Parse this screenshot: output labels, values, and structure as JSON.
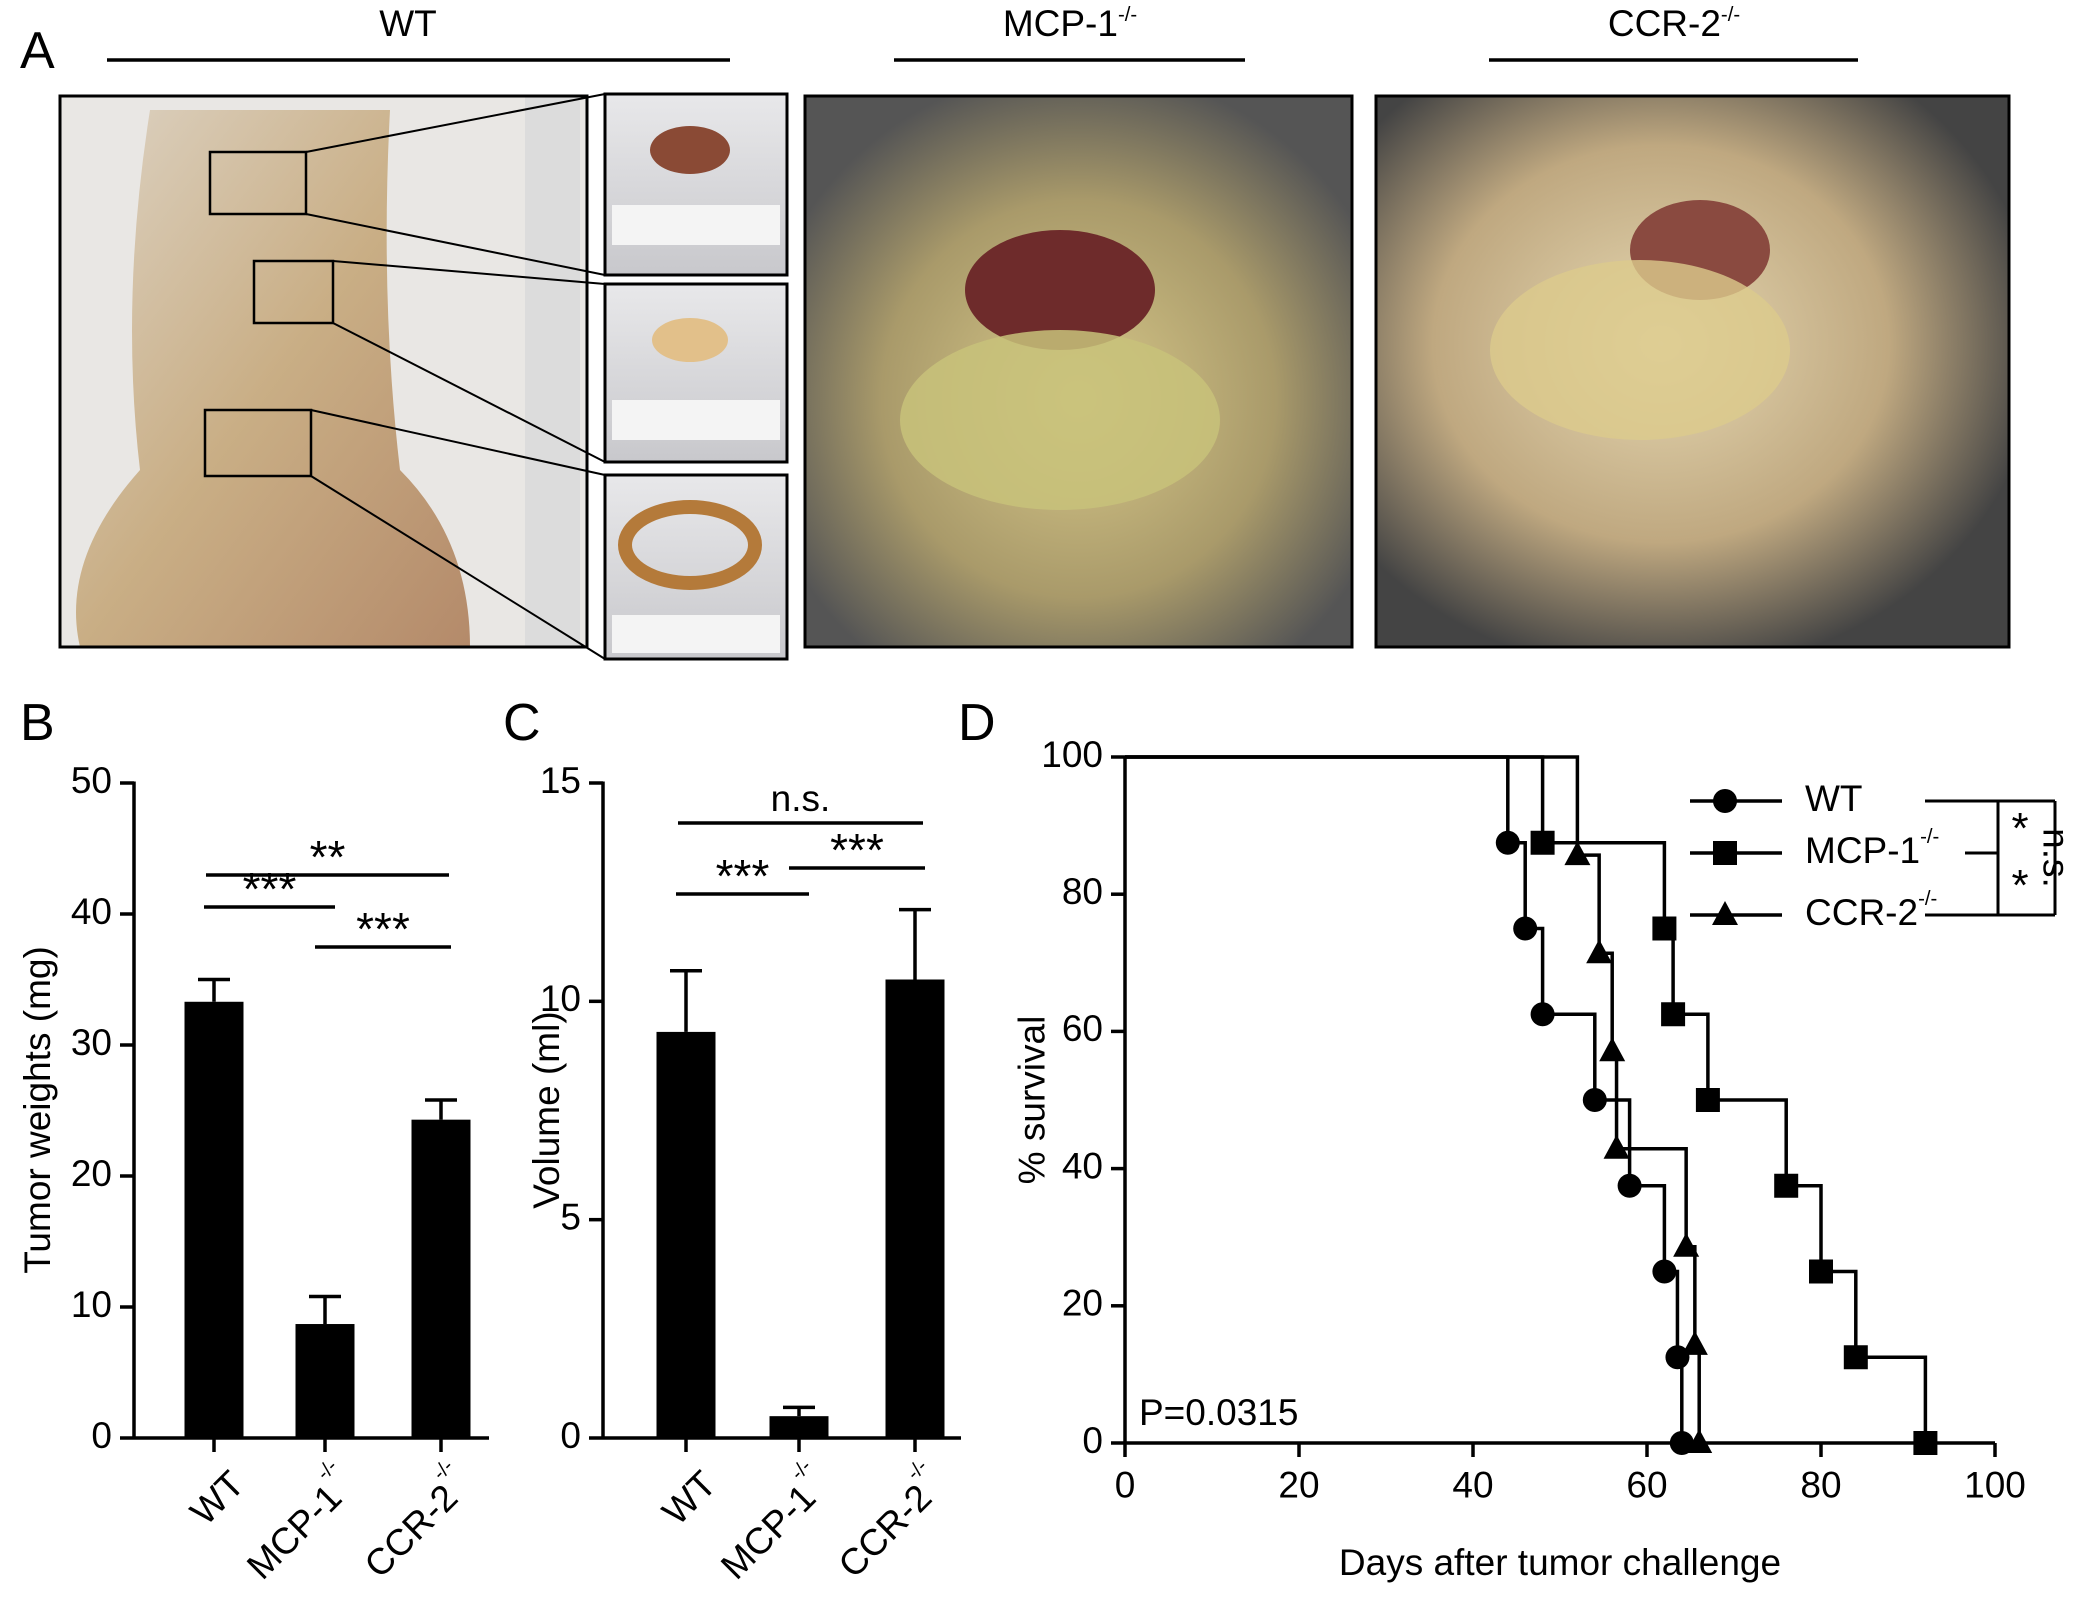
{
  "panel_a": {
    "letter": "A",
    "groups": [
      {
        "text": "WT"
      },
      {
        "text": "MCP-1",
        "sup": "-/-"
      },
      {
        "text": "CCR-2",
        "sup": "-/-"
      }
    ]
  },
  "chart_data": [
    {
      "type": "bar",
      "panel": "B",
      "y_label": "Tumor weights (mg)",
      "categories": [
        "WT",
        "MCP-1",
        "CCR-2"
      ],
      "category_sups": [
        null,
        "-/-",
        "-/-"
      ],
      "values": [
        33.3,
        8.7,
        24.3
      ],
      "errors": [
        1.7,
        2.1,
        1.5
      ],
      "color": "#000000",
      "ylim": [
        0,
        50
      ],
      "yticks": [
        0,
        10,
        20,
        30,
        40,
        50
      ],
      "comparisons": [
        {
          "from": 0,
          "to": 2,
          "label": "**"
        },
        {
          "from": 0,
          "to": 1,
          "label": "***"
        },
        {
          "from": 1,
          "to": 2,
          "label": "***"
        }
      ]
    },
    {
      "type": "bar",
      "panel": "C",
      "y_label": "Volume (ml)",
      "categories": [
        "WT",
        "MCP-1",
        "CCR-2"
      ],
      "category_sups": [
        null,
        "-/-",
        "-/-"
      ],
      "values": [
        9.3,
        0.5,
        10.5
      ],
      "errors": [
        1.4,
        0.2,
        1.6
      ],
      "color": "#000000",
      "ylim": [
        0,
        15
      ],
      "yticks": [
        0,
        5,
        10,
        15
      ],
      "comparisons": [
        {
          "from": 0,
          "to": 2,
          "label": "n.s."
        },
        {
          "from": 0,
          "to": 1,
          "label": "***"
        },
        {
          "from": 1,
          "to": 2,
          "label": "***"
        }
      ]
    },
    {
      "type": "line",
      "step": true,
      "panel": "D",
      "x_label": "Days after tumor challenge",
      "y_label": "% survival",
      "annotation": "P=0.0315",
      "xlim": [
        0,
        100
      ],
      "xticks": [
        0,
        20,
        40,
        60,
        80,
        100
      ],
      "ylim": [
        0,
        100
      ],
      "yticks": [
        0,
        20,
        40,
        60,
        80,
        100
      ],
      "series": [
        {
          "name": "WT",
          "marker": "circle",
          "color": "#000000",
          "x": [
            0,
            44,
            46,
            48,
            54,
            58,
            62,
            63.5,
            64
          ],
          "values": [
            100,
            87.5,
            75,
            62.5,
            50,
            37.5,
            25,
            12.5,
            0
          ]
        },
        {
          "name": "MCP-1",
          "name_sup": "-/-",
          "marker": "square",
          "color": "#000000",
          "x": [
            0,
            48,
            62,
            63,
            67,
            76,
            80,
            84,
            92
          ],
          "values": [
            100,
            87.5,
            75,
            62.5,
            50,
            37.5,
            25,
            12.5,
            0
          ]
        },
        {
          "name": "CCR-2",
          "name_sup": "-/-",
          "marker": "triangle",
          "color": "#000000",
          "x": [
            0,
            52,
            54.5,
            56,
            56.5,
            64.5,
            65.5,
            66
          ],
          "values": [
            100,
            85.7,
            71.4,
            57.1,
            42.9,
            28.6,
            14.3,
            0
          ]
        }
      ],
      "comparisons": [
        {
          "from": 0,
          "to": 1,
          "label": "*"
        },
        {
          "from": 1,
          "to": 2,
          "label": "*"
        },
        {
          "from": 0,
          "to": 2,
          "label": "n.s."
        }
      ]
    }
  ]
}
